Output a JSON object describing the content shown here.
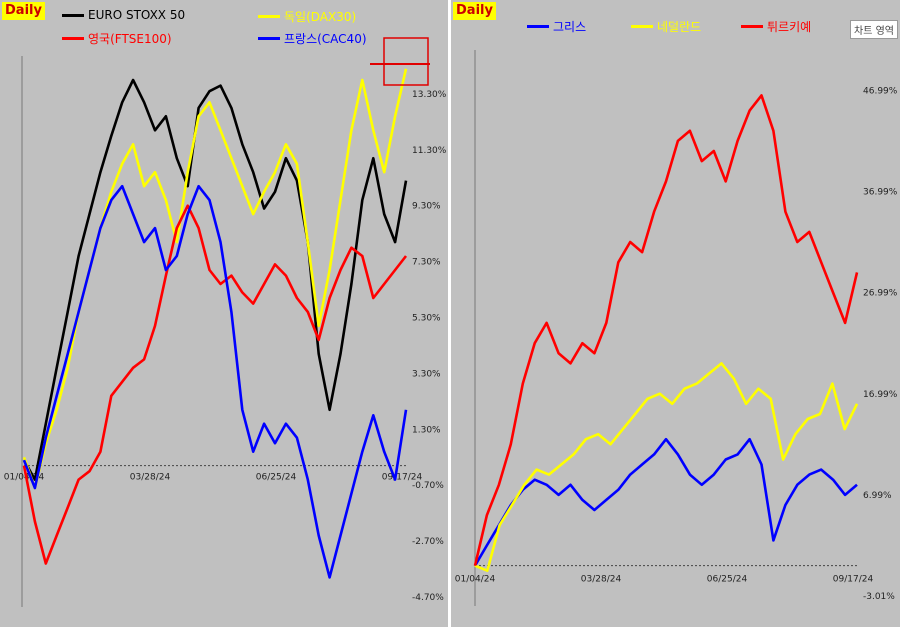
{
  "left_panel": {
    "badge": "Daily",
    "legend": [
      {
        "label": "EURO STOXX 50",
        "color": "#000000",
        "text_color": "#000000"
      },
      {
        "label": "독일(DAX30)",
        "color": "#ffff00",
        "text_color": "#ffff00"
      },
      {
        "label": "영국(FTSE100)",
        "color": "#ff0000",
        "text_color": "#ff0000"
      },
      {
        "label": "프랑스(CAC40)",
        "color": "#0000ff",
        "text_color": "#0000ff"
      }
    ]
  },
  "right_panel": {
    "badge": "Daily",
    "zone_button": "차트 영역",
    "legend": [
      {
        "label": "그리스",
        "color": "#0000ff",
        "text_color": "#0000ff"
      },
      {
        "label": "네덜란드",
        "color": "#ffff00",
        "text_color": "#ffff00"
      },
      {
        "label": "튀르키예",
        "color": "#ff0000",
        "text_color": "#ff0000"
      }
    ]
  },
  "chart_data": [
    {
      "type": "line",
      "x_labels": [
        "01/04/24",
        "03/28/24",
        "06/25/24",
        "09/17/24"
      ],
      "y_ticks": [
        "13.30%",
        "11.30%",
        "9.30%",
        "7.30%",
        "5.30%",
        "3.30%",
        "1.30%",
        "-0.70%",
        "-2.70%",
        "-4.70%"
      ],
      "ylim": [
        -4.7,
        14.3
      ],
      "y_unit": "%",
      "baseline": 0,
      "highlight_box": true,
      "series": [
        {
          "name": "EURO STOXX 50",
          "color": "#000000",
          "values": [
            0.2,
            -0.5,
            1.5,
            3.5,
            5.5,
            7.5,
            9.0,
            10.5,
            11.8,
            13.0,
            13.8,
            13.0,
            12.0,
            12.5,
            11.0,
            10.0,
            12.8,
            13.4,
            13.6,
            12.8,
            11.5,
            10.5,
            9.2,
            9.8,
            11.0,
            10.2,
            8.0,
            4.0,
            2.0,
            4.0,
            6.5,
            9.5,
            11.0,
            9.0,
            8.0,
            10.2
          ]
        },
        {
          "name": "독일(DAX30)",
          "color": "#ffff00",
          "values": [
            0.3,
            -0.8,
            0.8,
            2.0,
            3.5,
            5.5,
            7.0,
            8.5,
            9.8,
            10.8,
            11.5,
            10.0,
            10.5,
            9.5,
            8.0,
            10.5,
            12.5,
            13.0,
            12.0,
            11.0,
            10.0,
            9.0,
            9.8,
            10.5,
            11.5,
            10.8,
            8.0,
            5.0,
            7.0,
            9.5,
            12.0,
            13.8,
            12.0,
            10.5,
            12.5,
            14.2
          ]
        },
        {
          "name": "영국(FTSE100)",
          "color": "#ff0000",
          "values": [
            0.0,
            -2.0,
            -3.5,
            -2.5,
            -1.5,
            -0.5,
            -0.2,
            0.5,
            2.5,
            3.0,
            3.5,
            3.8,
            5.0,
            6.8,
            8.5,
            9.3,
            8.5,
            7.0,
            6.5,
            6.8,
            6.2,
            5.8,
            6.5,
            7.2,
            6.8,
            6.0,
            5.5,
            4.5,
            6.0,
            7.0,
            7.8,
            7.5,
            6.0,
            6.5,
            7.0,
            7.5
          ]
        },
        {
          "name": "프랑스(CAC40)",
          "color": "#0000ff",
          "values": [
            0.2,
            -0.8,
            1.0,
            2.5,
            4.0,
            5.5,
            7.0,
            8.5,
            9.5,
            10.0,
            9.0,
            8.0,
            8.5,
            7.0,
            7.5,
            9.0,
            10.0,
            9.5,
            8.0,
            5.5,
            2.0,
            0.5,
            1.5,
            0.8,
            1.5,
            1.0,
            -0.5,
            -2.5,
            -4.0,
            -2.5,
            -1.0,
            0.5,
            1.8,
            0.5,
            -0.5,
            2.0
          ]
        }
      ]
    },
    {
      "type": "line",
      "x_labels": [
        "01/04/24",
        "03/28/24",
        "06/25/24",
        "09/17/24"
      ],
      "y_ticks": [
        "46.99%",
        "36.99%",
        "26.99%",
        "16.99%",
        "6.99%",
        "-3.01%"
      ],
      "ylim": [
        -3.0,
        50.0
      ],
      "y_unit": "%",
      "baseline": 0,
      "series": [
        {
          "name": "그리스",
          "color": "#0000ff",
          "values": [
            0.0,
            2.0,
            4.0,
            6.0,
            7.5,
            8.5,
            8.0,
            7.0,
            8.0,
            6.5,
            5.5,
            6.5,
            7.5,
            9.0,
            10.0,
            11.0,
            12.5,
            11.0,
            9.0,
            8.0,
            9.0,
            10.5,
            11.0,
            12.5,
            10.0,
            2.5,
            6.0,
            8.0,
            9.0,
            9.5,
            8.5,
            7.0,
            8.0
          ]
        },
        {
          "name": "네덜란드",
          "color": "#ffff00",
          "values": [
            0.0,
            -0.5,
            4.0,
            6.0,
            8.0,
            9.5,
            9.0,
            10.0,
            11.0,
            12.5,
            13.0,
            12.0,
            13.5,
            15.0,
            16.5,
            17.0,
            16.0,
            17.5,
            18.0,
            19.0,
            20.0,
            18.5,
            16.0,
            17.5,
            16.5,
            10.5,
            13.0,
            14.5,
            15.0,
            18.0,
            13.5,
            16.0
          ]
        },
        {
          "name": "튀르키예",
          "color": "#ff0000",
          "values": [
            0.0,
            5.0,
            8.0,
            12.0,
            18.0,
            22.0,
            24.0,
            21.0,
            20.0,
            22.0,
            21.0,
            24.0,
            30.0,
            32.0,
            31.0,
            35.0,
            38.0,
            42.0,
            43.0,
            40.0,
            41.0,
            38.0,
            42.0,
            45.0,
            46.5,
            43.0,
            35.0,
            32.0,
            33.0,
            30.0,
            27.0,
            24.0,
            29.0
          ]
        }
      ]
    }
  ]
}
